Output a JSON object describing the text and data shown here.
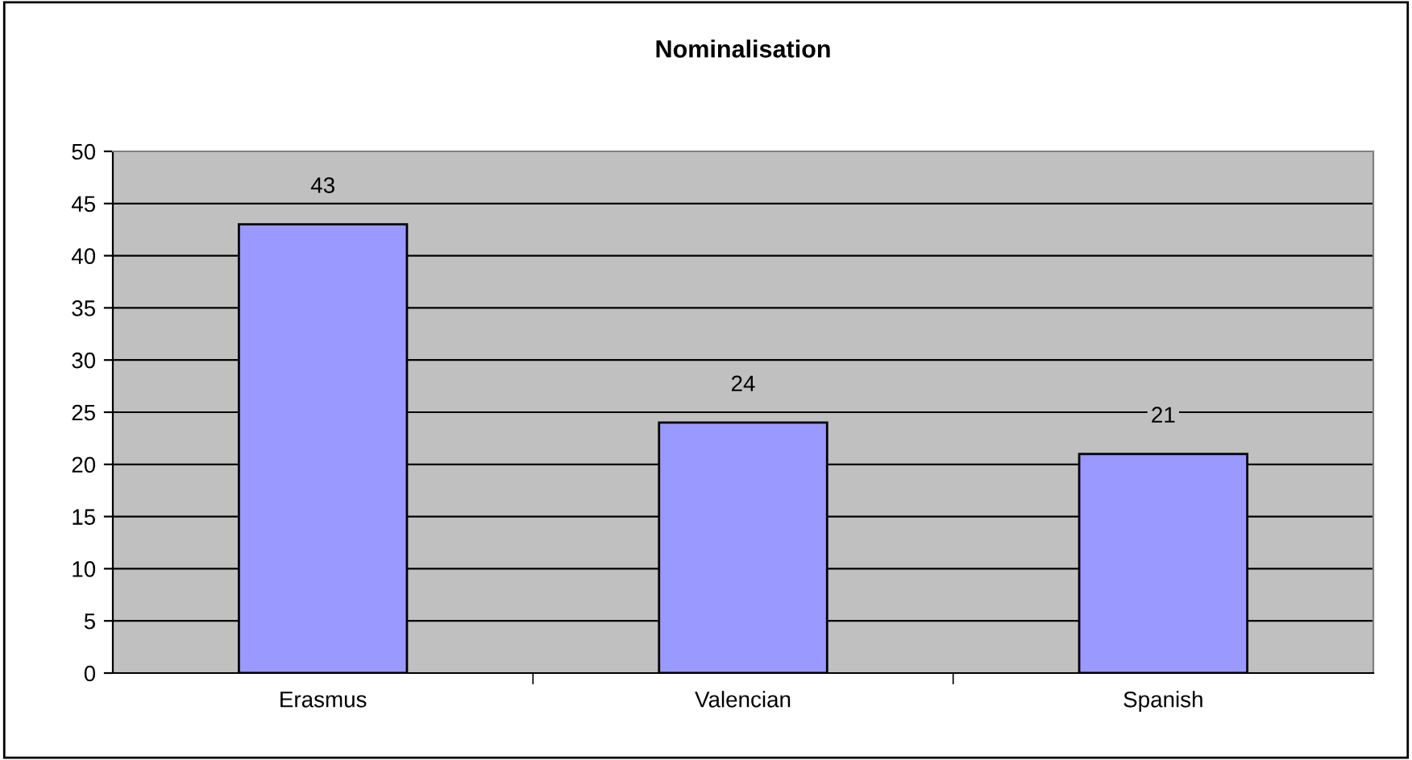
{
  "chart_data": {
    "type": "bar",
    "title": "Nominalisation",
    "categories": [
      "Erasmus",
      "Valencian",
      "Spanish"
    ],
    "values": [
      43,
      24,
      21
    ],
    "color": "#9999ff",
    "ylim": [
      0,
      50
    ],
    "yticks": [
      0,
      5,
      10,
      15,
      20,
      25,
      30,
      35,
      40,
      45,
      50
    ],
    "grid": "y",
    "data_labels": true
  }
}
